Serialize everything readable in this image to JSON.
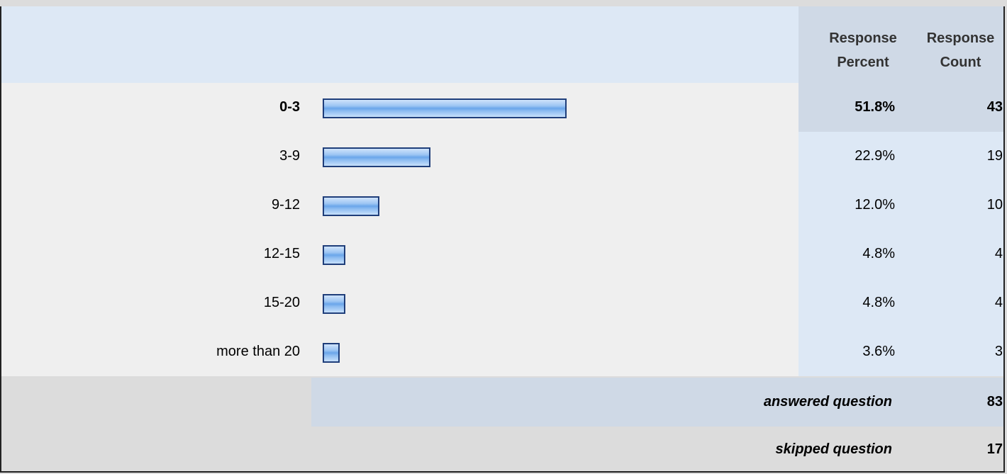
{
  "header": {
    "response_percent_label": "Response Percent",
    "response_count_label": "Response Count"
  },
  "chart_data": {
    "type": "bar",
    "orientation": "horizontal",
    "categories": [
      "0-3",
      "3-9",
      "9-12",
      "12-15",
      "15-20",
      "more than 20"
    ],
    "percent_labels": [
      "51.8%",
      "22.9%",
      "12.0%",
      "4.8%",
      "4.8%",
      "3.6%"
    ],
    "values": [
      51.8,
      22.9,
      12.0,
      4.8,
      4.8,
      3.6
    ],
    "counts": [
      "43",
      "19",
      "10",
      "4",
      "4",
      "3"
    ],
    "highlight_index": 0,
    "bar_color": "#8dbcf1",
    "bar_border": "#1f3e7a"
  },
  "footer": {
    "answered_label": "answered question",
    "answered_value": "83",
    "skipped_label": "skipped question",
    "skipped_value": "17"
  }
}
